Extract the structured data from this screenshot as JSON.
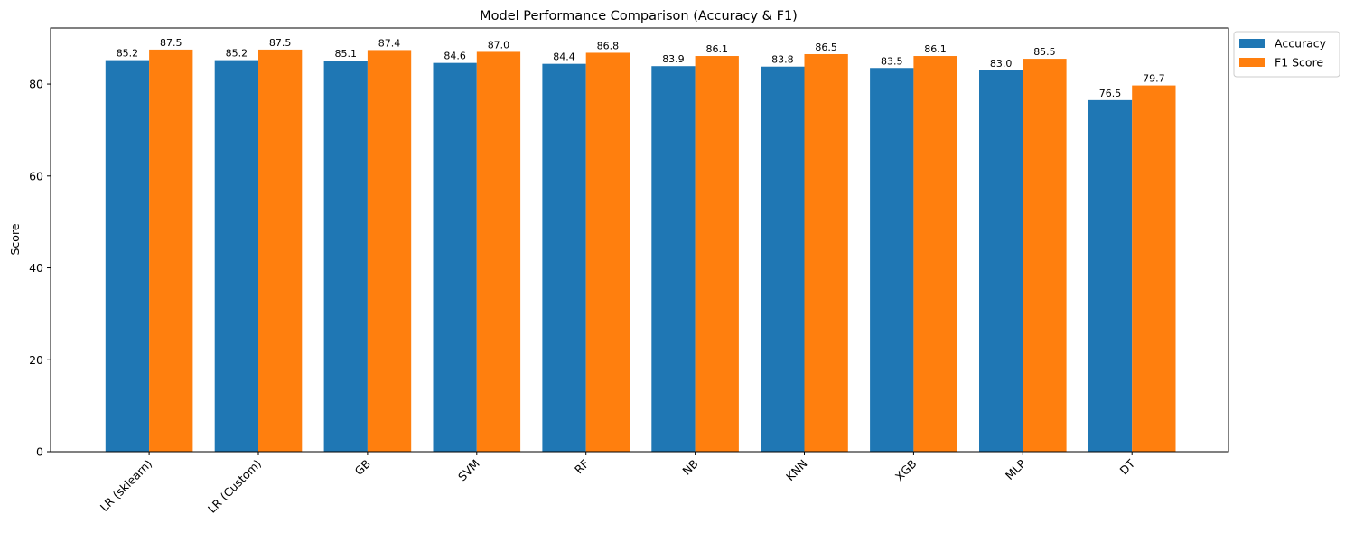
{
  "chart_data": {
    "type": "bar",
    "title": "Model Performance Comparison (Accuracy & F1)",
    "xlabel": "",
    "ylabel": "Score",
    "ylim": [
      0,
      92.2
    ],
    "yticks": [
      0,
      20,
      40,
      60,
      80
    ],
    "grid": false,
    "legend_position": "outside-top-right",
    "categories": [
      "LR (sklearn)",
      "LR (Custom)",
      "GB",
      "SVM",
      "RF",
      "NB",
      "KNN",
      "XGB",
      "MLP",
      "DT"
    ],
    "series": [
      {
        "name": "Accuracy",
        "color": "#1f77b4",
        "values": [
          85.2,
          85.2,
          85.1,
          84.6,
          84.4,
          83.9,
          83.8,
          83.5,
          83.0,
          76.5
        ]
      },
      {
        "name": "F1 Score",
        "color": "#ff7f0e",
        "values": [
          87.5,
          87.5,
          87.4,
          87.0,
          86.8,
          86.1,
          86.5,
          86.1,
          85.5,
          79.7
        ]
      }
    ],
    "value_label_format": "0.1f"
  }
}
